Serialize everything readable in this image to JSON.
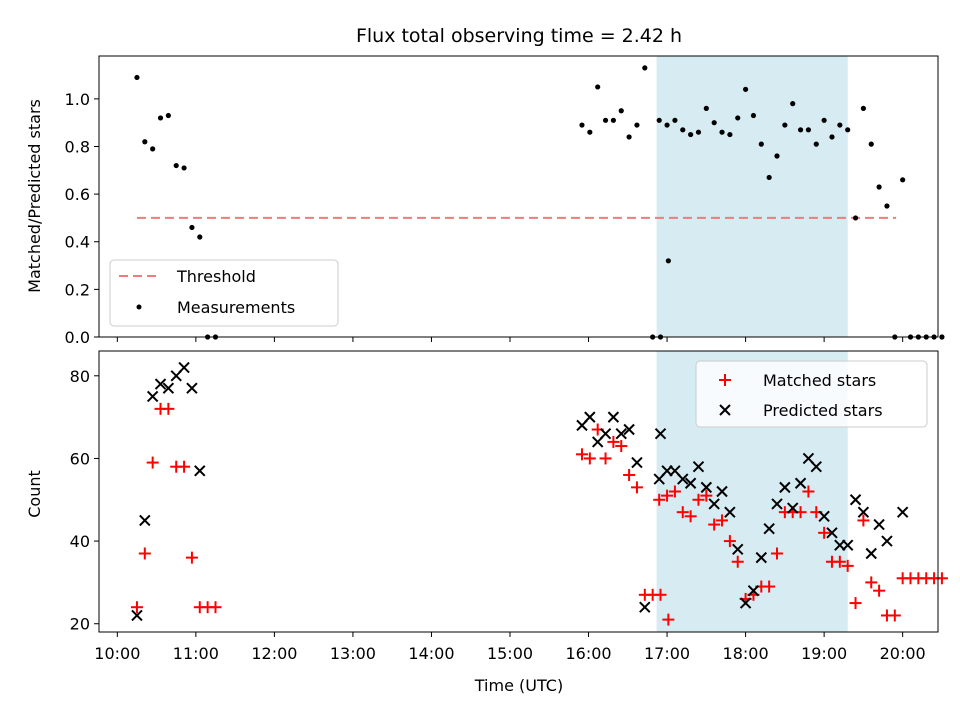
{
  "chart_data": [
    {
      "type": "scatter",
      "title": "Flux total observing time = 2.42 h",
      "xlabel": "",
      "ylabel": "Matched/Predicted stars",
      "ylim": [
        0,
        1.18
      ],
      "yticks": [
        "0.0",
        "0.2",
        "0.4",
        "0.6",
        "0.8",
        "1.0"
      ],
      "threshold": {
        "name": "Threshold",
        "value": 0.5,
        "x_start": "10:15",
        "x_end": "19:55",
        "color": "#f07b7b"
      },
      "highlight": {
        "x_start": "16:52",
        "x_end": "19:18",
        "color": "#add8e6"
      },
      "legend": {
        "placement": "lower-left",
        "entries": [
          "Threshold",
          "Measurements"
        ]
      },
      "series": [
        {
          "name": "Measurements",
          "color": "#000000",
          "points": [
            [
              "10:15",
              1.09
            ],
            [
              "10:21",
              0.82
            ],
            [
              "10:27",
              0.79
            ],
            [
              "10:33",
              0.92
            ],
            [
              "10:39",
              0.93
            ],
            [
              "10:45",
              0.72
            ],
            [
              "10:51",
              0.71
            ],
            [
              "10:57",
              0.46
            ],
            [
              "11:03",
              0.42
            ],
            [
              "11:09",
              0.0
            ],
            [
              "11:15",
              0.0
            ],
            [
              "15:55",
              0.89
            ],
            [
              "16:01",
              0.86
            ],
            [
              "16:07",
              1.05
            ],
            [
              "16:13",
              0.91
            ],
            [
              "16:19",
              0.91
            ],
            [
              "16:25",
              0.95
            ],
            [
              "16:31",
              0.84
            ],
            [
              "16:37",
              0.89
            ],
            [
              "16:43",
              1.13
            ],
            [
              "16:49",
              0.0
            ],
            [
              "16:55",
              0.0
            ],
            [
              "17:01",
              0.32
            ],
            [
              "16:54",
              0.91
            ],
            [
              "17:00",
              0.89
            ],
            [
              "17:06",
              0.91
            ],
            [
              "17:12",
              0.87
            ],
            [
              "17:18",
              0.85
            ],
            [
              "17:24",
              0.86
            ],
            [
              "17:30",
              0.96
            ],
            [
              "17:36",
              0.9
            ],
            [
              "17:42",
              0.86
            ],
            [
              "17:48",
              0.85
            ],
            [
              "17:54",
              0.92
            ],
            [
              "18:00",
              1.04
            ],
            [
              "18:06",
              0.93
            ],
            [
              "18:12",
              0.81
            ],
            [
              "18:18",
              0.67
            ],
            [
              "18:24",
              0.76
            ],
            [
              "18:30",
              0.89
            ],
            [
              "18:36",
              0.98
            ],
            [
              "18:42",
              0.87
            ],
            [
              "18:48",
              0.87
            ],
            [
              "18:54",
              0.81
            ],
            [
              "19:00",
              0.91
            ],
            [
              "19:06",
              0.84
            ],
            [
              "19:12",
              0.89
            ],
            [
              "19:18",
              0.87
            ],
            [
              "19:24",
              0.5
            ],
            [
              "19:30",
              0.96
            ],
            [
              "19:36",
              0.81
            ],
            [
              "19:42",
              0.63
            ],
            [
              "19:48",
              0.55
            ],
            [
              "19:54",
              0.0
            ],
            [
              "20:00",
              0.66
            ],
            [
              "20:06",
              0.0
            ],
            [
              "20:12",
              0.0
            ],
            [
              "20:18",
              0.0
            ],
            [
              "20:24",
              0.0
            ],
            [
              "20:30",
              0.0
            ]
          ]
        }
      ]
    },
    {
      "type": "scatter",
      "title": "",
      "xlabel": "Time (UTC)",
      "ylabel": "Count",
      "ylim": [
        18,
        86
      ],
      "yticks": [
        "20",
        "40",
        "60",
        "80"
      ],
      "xticks": [
        "10:00",
        "11:00",
        "12:00",
        "13:00",
        "14:00",
        "15:00",
        "16:00",
        "17:00",
        "18:00",
        "19:00",
        "20:00"
      ],
      "highlight": {
        "x_start": "16:52",
        "x_end": "19:18",
        "color": "#add8e6"
      },
      "legend": {
        "placement": "upper-right",
        "entries": [
          "Matched stars",
          "Predicted stars"
        ]
      },
      "series": [
        {
          "name": "Matched stars",
          "marker": "plus",
          "color": "#ff0000",
          "points": [
            [
              "10:15",
              24
            ],
            [
              "10:21",
              37
            ],
            [
              "10:27",
              59
            ],
            [
              "10:33",
              72
            ],
            [
              "10:39",
              72
            ],
            [
              "10:45",
              58
            ],
            [
              "10:51",
              58
            ],
            [
              "10:57",
              36
            ],
            [
              "11:03",
              24
            ],
            [
              "11:09",
              24
            ],
            [
              "11:15",
              24
            ],
            [
              "15:55",
              61
            ],
            [
              "16:01",
              60
            ],
            [
              "16:07",
              67
            ],
            [
              "16:13",
              60
            ],
            [
              "16:19",
              64
            ],
            [
              "16:25",
              63
            ],
            [
              "16:31",
              56
            ],
            [
              "16:37",
              53
            ],
            [
              "16:43",
              27
            ],
            [
              "16:49",
              27
            ],
            [
              "16:55",
              27
            ],
            [
              "17:01",
              21
            ],
            [
              "16:54",
              50
            ],
            [
              "17:00",
              51
            ],
            [
              "17:06",
              52
            ],
            [
              "17:12",
              47
            ],
            [
              "17:18",
              46
            ],
            [
              "17:24",
              50
            ],
            [
              "17:30",
              51
            ],
            [
              "17:36",
              44
            ],
            [
              "17:42",
              45
            ],
            [
              "17:48",
              40
            ],
            [
              "17:54",
              35
            ],
            [
              "18:00",
              26
            ],
            [
              "18:06",
              27
            ],
            [
              "18:12",
              29
            ],
            [
              "18:18",
              29
            ],
            [
              "18:24",
              37
            ],
            [
              "18:30",
              47
            ],
            [
              "18:36",
              47
            ],
            [
              "18:42",
              47
            ],
            [
              "18:48",
              52
            ],
            [
              "18:54",
              47
            ],
            [
              "19:00",
              42
            ],
            [
              "19:06",
              35
            ],
            [
              "19:12",
              35
            ],
            [
              "19:18",
              34
            ],
            [
              "19:24",
              25
            ],
            [
              "19:30",
              45
            ],
            [
              "19:36",
              30
            ],
            [
              "19:42",
              28
            ],
            [
              "19:48",
              22
            ],
            [
              "19:54",
              22
            ],
            [
              "20:00",
              31
            ],
            [
              "20:06",
              31
            ],
            [
              "20:12",
              31
            ],
            [
              "20:18",
              31
            ],
            [
              "20:24",
              31
            ],
            [
              "20:30",
              31
            ]
          ]
        },
        {
          "name": "Predicted stars",
          "marker": "x",
          "color": "#000000",
          "points": [
            [
              "10:15",
              22
            ],
            [
              "10:21",
              45
            ],
            [
              "10:27",
              75
            ],
            [
              "10:33",
              78
            ],
            [
              "10:39",
              77
            ],
            [
              "10:45",
              80
            ],
            [
              "10:51",
              82
            ],
            [
              "10:57",
              77
            ],
            [
              "11:03",
              57
            ],
            [
              "15:55",
              68
            ],
            [
              "16:01",
              70
            ],
            [
              "16:07",
              64
            ],
            [
              "16:13",
              66
            ],
            [
              "16:19",
              70
            ],
            [
              "16:25",
              66
            ],
            [
              "16:31",
              67
            ],
            [
              "16:37",
              59
            ],
            [
              "16:43",
              24
            ],
            [
              "16:55",
              66
            ],
            [
              "16:54",
              55
            ],
            [
              "17:00",
              57
            ],
            [
              "17:06",
              57
            ],
            [
              "17:12",
              55
            ],
            [
              "17:18",
              54
            ],
            [
              "17:24",
              58
            ],
            [
              "17:30",
              53
            ],
            [
              "17:36",
              49
            ],
            [
              "17:42",
              52
            ],
            [
              "17:48",
              47
            ],
            [
              "17:54",
              38
            ],
            [
              "18:00",
              25
            ],
            [
              "18:06",
              28
            ],
            [
              "18:12",
              36
            ],
            [
              "18:18",
              43
            ],
            [
              "18:24",
              49
            ],
            [
              "18:30",
              53
            ],
            [
              "18:36",
              48
            ],
            [
              "18:42",
              54
            ],
            [
              "18:48",
              60
            ],
            [
              "18:54",
              58
            ],
            [
              "19:00",
              46
            ],
            [
              "19:06",
              42
            ],
            [
              "19:12",
              39
            ],
            [
              "19:18",
              39
            ],
            [
              "19:24",
              50
            ],
            [
              "19:30",
              47
            ],
            [
              "19:36",
              37
            ],
            [
              "19:42",
              44
            ],
            [
              "19:48",
              40
            ],
            [
              "20:00",
              47
            ]
          ]
        }
      ]
    }
  ]
}
